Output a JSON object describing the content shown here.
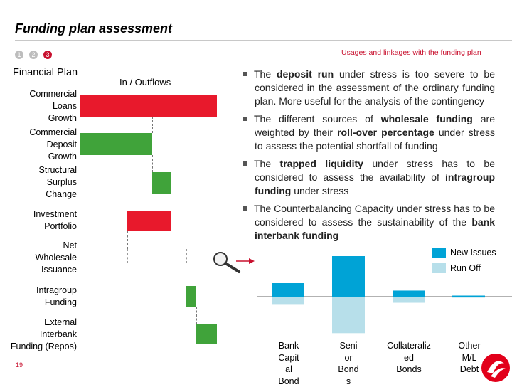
{
  "header": {
    "title": "Funding plan assessment",
    "steps": [
      "1",
      "2",
      "3"
    ],
    "breadcrumb": "Usages and linkages with the funding plan"
  },
  "waterfall": {
    "column_label": "Financial Plan",
    "flow_label": "In / Outflows",
    "rows": [
      {
        "label": "Commercial\nLoans\nGrowth",
        "direction": "outflow",
        "color": "#e8192c"
      },
      {
        "label": "Commercial\nDeposit\nGrowth",
        "direction": "inflow",
        "color": "#40a33a"
      },
      {
        "label": "Structural\nSurplus\nChange",
        "direction": "inflow",
        "color": "#40a33a"
      },
      {
        "label": "Investment\nPortfolio",
        "direction": "outflow",
        "color": "#e8192c"
      },
      {
        "label": "Net\nWholesale\nIssuance",
        "direction": "none",
        "color": ""
      },
      {
        "label": "Intragroup\nFunding",
        "direction": "inflow",
        "color": "#40a33a"
      },
      {
        "label": "External\nInterbank\nFunding (Repos)",
        "direction": "inflow",
        "color": "#40a33a"
      }
    ]
  },
  "bullets": [
    {
      "pre": "The ",
      "bold": "deposit run",
      "post": " under stress is too severe to be considered in the assessment of the ordinary funding plan. More useful for the analysis of the contingency"
    },
    {
      "pre": "The different sources of ",
      "bold": "wholesale funding",
      "post": " are weighted by their ",
      "bold2": "roll-over percentage",
      "post2": " under stress to assess the potential shortfall of funding"
    },
    {
      "pre": "The ",
      "bold": "trapped liquidity",
      "post": " under stress has to be considered to assess the availability of ",
      "bold2": "intragroup funding",
      "post2": " under stress"
    },
    {
      "pre": "The Counterbalancing Capacity under stress has to be considered to assess the sustainability of the ",
      "bold": "bank interbank funding",
      "post": ""
    }
  ],
  "chart_data": {
    "type": "bar",
    "categories": [
      "Bank\nCapit\nal\nBond",
      "Seni\nor\nBond\ns",
      "Collateraliz\ned\nBonds",
      "Other\nM/L\nDebt"
    ],
    "series": [
      {
        "name": "New Issues",
        "values": [
          1.0,
          3.0,
          0.45,
          0.05
        ],
        "color": "#00a3d6"
      },
      {
        "name": "Run Off",
        "values": [
          -0.6,
          -2.7,
          -0.45,
          -0.03
        ],
        "color": "#b7dfea"
      }
    ],
    "ylim": [
      -3,
      3.2
    ],
    "legend": "top-right"
  },
  "footer": {
    "page": "19"
  },
  "colors": {
    "accent": "#c8102e",
    "inflow": "#40a33a",
    "outflow": "#e8192c"
  }
}
